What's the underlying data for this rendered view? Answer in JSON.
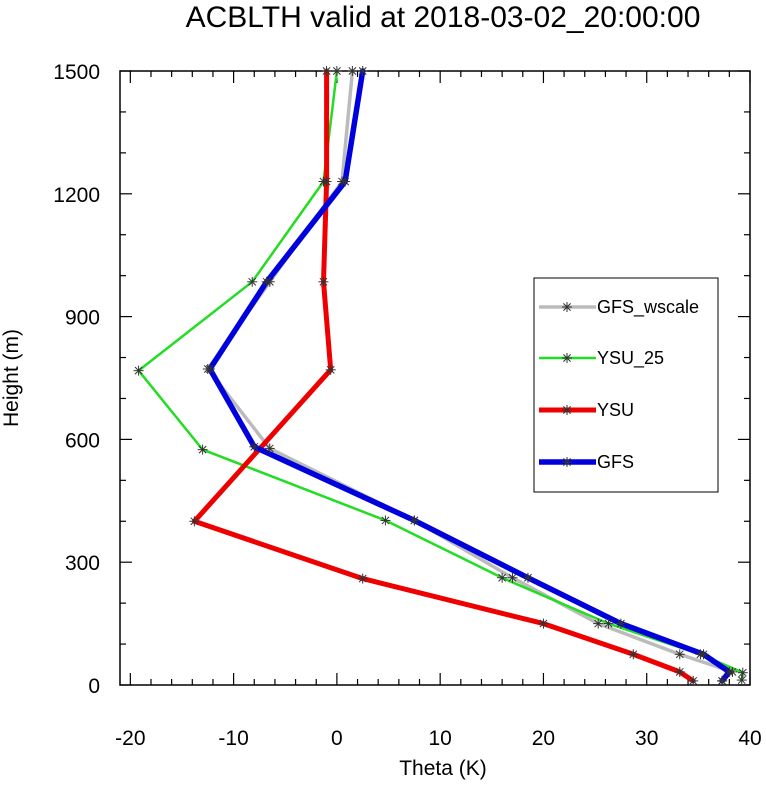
{
  "chart_data": {
    "type": "line",
    "title": "ACBLTH valid at 2018-03-02_20:00:00",
    "xlabel": "Theta (K)",
    "ylabel": "Height (m)",
    "xlim": [
      -21,
      40
    ],
    "ylim": [
      0,
      1500
    ],
    "xticks": [
      -20,
      -10,
      0,
      10,
      20,
      30,
      40
    ],
    "xtick_labels": [
      "-20",
      "-10",
      "0",
      "10",
      "20",
      "30",
      "40"
    ],
    "yticks": [
      0,
      300,
      600,
      900,
      1200,
      1500
    ],
    "ytick_labels": [
      "0",
      "300",
      "600",
      "900",
      "1200",
      "1500"
    ],
    "grid": false,
    "legend_position": "right",
    "series": [
      {
        "name": "GFS_wscale",
        "color": "#bbbbbb",
        "points": [
          [
            1.5,
            1500
          ],
          [
            0.5,
            1230
          ],
          [
            -6.5,
            985
          ],
          [
            -12.5,
            772
          ],
          [
            -6.5,
            578
          ],
          [
            7.5,
            402
          ],
          [
            17,
            262
          ],
          [
            25.3,
            150
          ],
          [
            33.2,
            75
          ],
          [
            38.3,
            32
          ],
          [
            37.3,
            10
          ]
        ]
      },
      {
        "name": "YSU_25",
        "color": "#22dd22",
        "points": [
          [
            0,
            1500
          ],
          [
            -1.3,
            1230
          ],
          [
            -8.2,
            985
          ],
          [
            -19.2,
            768
          ],
          [
            -13,
            575
          ],
          [
            4.7,
            402
          ],
          [
            16,
            262
          ],
          [
            26.3,
            150
          ],
          [
            35.2,
            75
          ],
          [
            39.3,
            30
          ],
          [
            39.2,
            12
          ]
        ]
      },
      {
        "name": "YSU",
        "color": "#ee0000",
        "points": [
          [
            -1,
            1500
          ],
          [
            -1,
            1230
          ],
          [
            -1.3,
            985
          ],
          [
            -0.6,
            770
          ],
          [
            -13.8,
            400
          ],
          [
            2.5,
            260
          ],
          [
            20,
            150
          ],
          [
            28.7,
            75
          ],
          [
            33.2,
            32
          ],
          [
            34.5,
            10
          ]
        ]
      },
      {
        "name": "GFS",
        "color": "#0000dd",
        "points": [
          [
            2.5,
            1500
          ],
          [
            0.8,
            1230
          ],
          [
            -6.8,
            985
          ],
          [
            -12.3,
            772
          ],
          [
            -8,
            582
          ],
          [
            7.5,
            402
          ],
          [
            18.5,
            262
          ],
          [
            27.5,
            150
          ],
          [
            35.5,
            75
          ],
          [
            38,
            32
          ],
          [
            37.3,
            10
          ]
        ]
      }
    ]
  }
}
